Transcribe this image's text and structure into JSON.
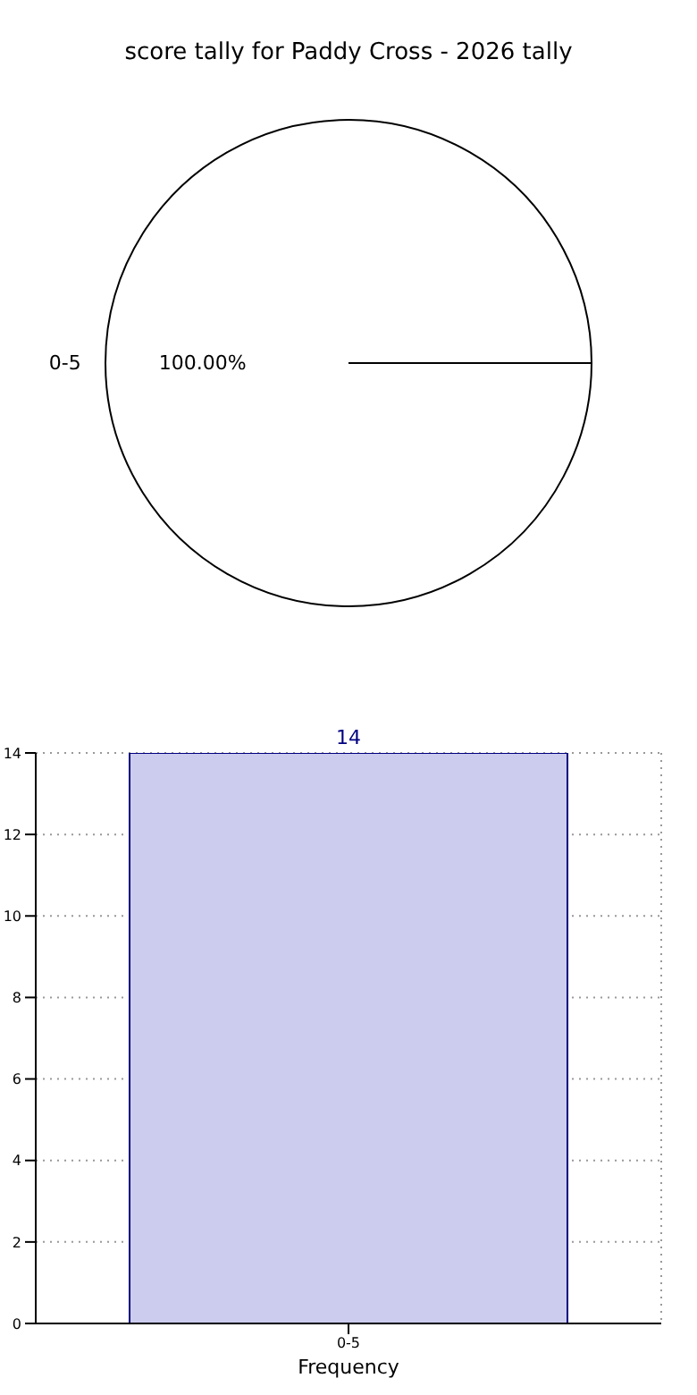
{
  "chart_data": [
    {
      "type": "pie",
      "title": "score tally for Paddy Cross - 2026 tally",
      "categories": [
        "0-5"
      ],
      "values": [
        100
      ],
      "colors": [
        "#ffffff"
      ],
      "value_labels": [
        "100.00%"
      ],
      "legend": false
    },
    {
      "type": "bar",
      "categories": [
        "0-5"
      ],
      "values": [
        14
      ],
      "color": "#ccccee",
      "xlabel": "Frequency",
      "ylim": [
        0,
        14
      ],
      "yticks": [
        0,
        2,
        4,
        6,
        8,
        10,
        12,
        14
      ],
      "grid": true,
      "data_labels": true,
      "legend": false
    }
  ]
}
